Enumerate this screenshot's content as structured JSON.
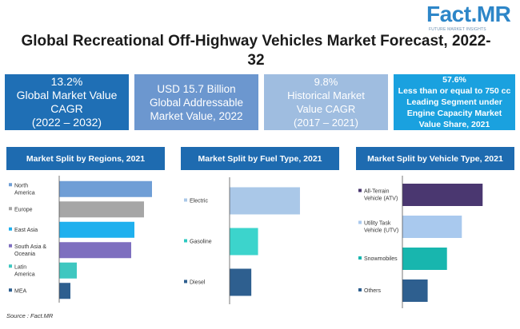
{
  "brand": {
    "name": "Fact.MR",
    "tagline": "FUTURE MARKET INSIGHTS",
    "color": "#2d86c8"
  },
  "title": "Global Recreational Off-Highway Vehicles Market Forecast, 2022-32",
  "kpis": [
    {
      "lines": [
        "13.2%",
        "Global Market Value",
        "CAGR",
        "(2022 – 2032)"
      ],
      "color": "#1f6fb5"
    },
    {
      "lines": [
        "USD 15.7 Billion",
        "Global Addressable",
        "Market Value, 2022"
      ],
      "color": "#6c97cf"
    },
    {
      "lines": [
        "9.8%",
        "Historical Market",
        "Value CAGR",
        "(2017 – 2021)"
      ],
      "color": "#9fbde0"
    },
    {
      "lines": [
        "57.6%",
        "Less than or equal to 750 cc",
        "Leading Segment under",
        "Engine Capacity Market",
        "Value Share, 2021"
      ],
      "color": "#1aa1df"
    }
  ],
  "chart_data": [
    {
      "type": "bar",
      "orientation": "horizontal",
      "title": "Market Split by Regions, 2021",
      "categories": [
        [
          "North",
          "America"
        ],
        [
          "Europe"
        ],
        [
          "East Asia"
        ],
        [
          "South Asia &",
          "Oceania"
        ],
        [
          "Latin",
          "America"
        ],
        [
          "MEA"
        ]
      ],
      "values": [
        29,
        26.5,
        23.5,
        22.5,
        5.5,
        3.5
      ],
      "colors": [
        "#6f9ed6",
        "#a6a6a6",
        "#1fb0ee",
        "#7e6fbf",
        "#3fc7c0",
        "#2e5f8f"
      ],
      "marker_colors": [
        "#6f9ed6",
        "#a6a6a6",
        "#1fb0ee",
        "#7e6fbf",
        "#3fc7c0",
        "#2e5f8f"
      ],
      "xlim": [
        0,
        31
      ]
    },
    {
      "type": "bar",
      "orientation": "horizontal",
      "title": "Market Split by Fuel Type, 2021",
      "categories": [
        [
          "Electric"
        ],
        [
          "Gasoline"
        ],
        [
          "Diesel"
        ]
      ],
      "values": [
        47,
        19,
        14.5
      ],
      "colors": [
        "#aac8e8",
        "#3cd4cc",
        "#2e5f8f"
      ],
      "marker_colors": [
        "#aac8e8",
        "#2cc9c1",
        "#2e5f8f"
      ],
      "xlim": [
        0,
        70
      ]
    },
    {
      "type": "bar",
      "orientation": "horizontal",
      "title": "Market Split by Vehicle Type, 2021",
      "categories": [
        [
          "All-Terrain",
          "Vehicle (ATV)"
        ],
        [
          "Utility Task",
          "Vehicle (UTV)"
        ],
        [
          "Snowmobiles"
        ],
        [
          "Others"
        ]
      ],
      "values": [
        54,
        40,
        30,
        17
      ],
      "colors": [
        "#4a3770",
        "#a9c9ee",
        "#18b6ae",
        "#2e5f8f"
      ],
      "marker_colors": [
        "#4a3770",
        "#a9c9ee",
        "#18b6ae",
        "#2e5f8f"
      ],
      "xlim": [
        0,
        70
      ]
    }
  ],
  "source": "Source : Fact.MR"
}
